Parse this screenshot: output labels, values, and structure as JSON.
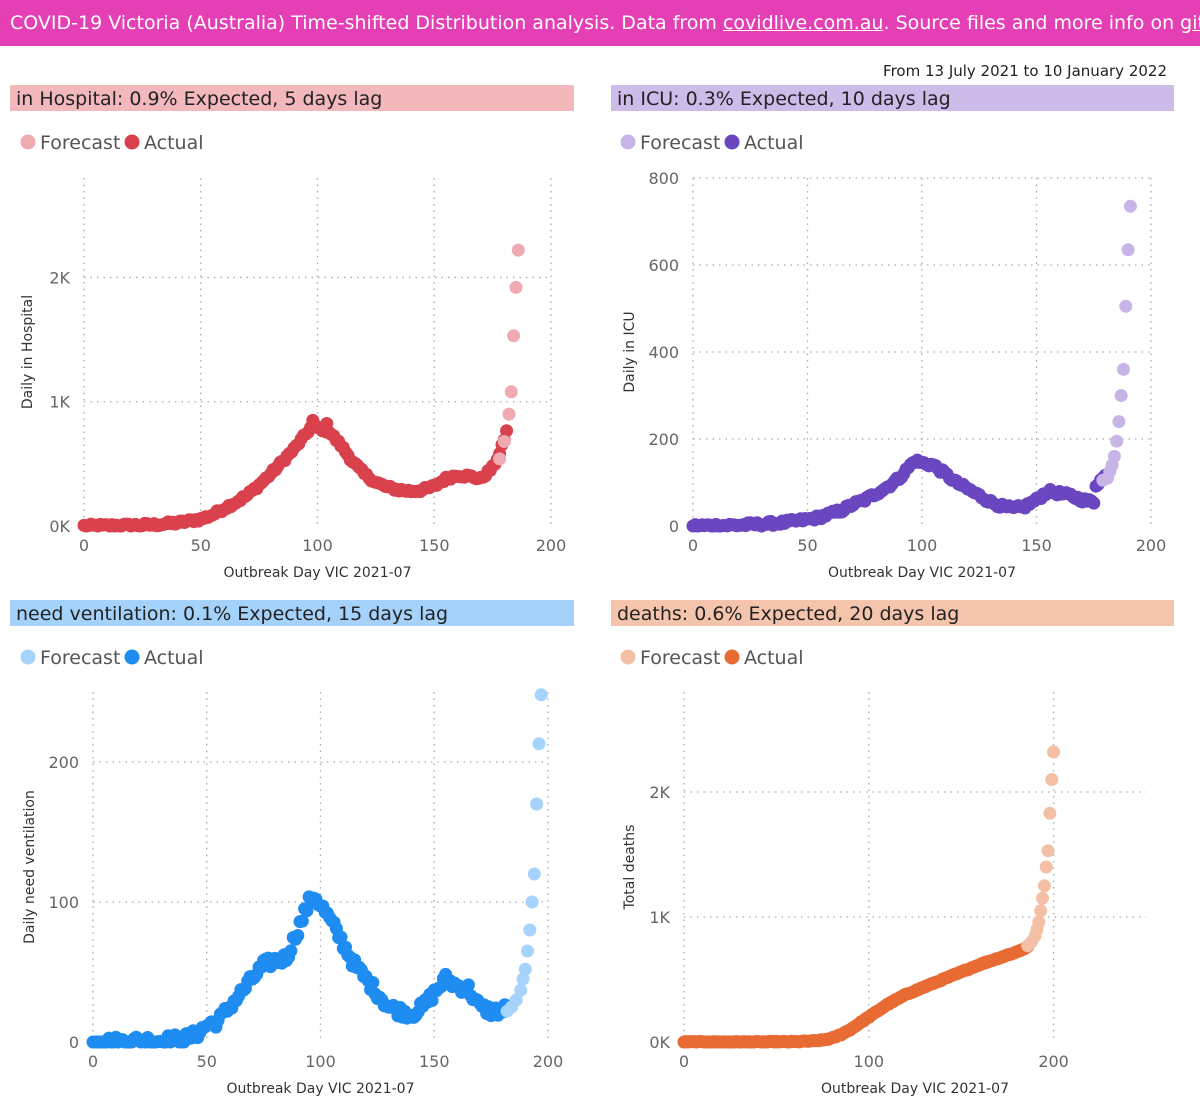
{
  "banner": {
    "prefix": "COVID-19 Victoria (Australia) Time-shifted Distribution analysis. Data from ",
    "link1": "covidlive.com.au",
    "middle": ". Source files and more info on ",
    "link2": "github",
    "suffix": "."
  },
  "date_range": "From 13 July 2021 to 10 January 2022",
  "legend": {
    "forecast": "Forecast",
    "actual": "Actual"
  },
  "colors": {
    "banner": "#e43fb4",
    "hospital_actual": "#d9414d",
    "hospital_forecast": "#f0aab1",
    "hospital_title_bg": "#f2b8bc",
    "icu_actual": "#6b46c1",
    "icu_forecast": "#c8b5e8",
    "icu_title_bg": "#cdbbea",
    "vent_actual": "#1e8cf0",
    "vent_forecast": "#a6d3fb",
    "vent_title_bg": "#a5d2fa",
    "deaths_actual": "#e86b33",
    "deaths_forecast": "#f3c0a6",
    "deaths_title_bg": "#f4c4ad"
  },
  "chart_data": [
    {
      "type": "scatter",
      "title": "in Hospital: 0.9% Expected, 5 days lag",
      "xlabel": "Outbreak Day VIC 2021-07",
      "ylabel": "Daily in Hospital",
      "xlim": [
        0,
        200
      ],
      "ylim": [
        0,
        2800
      ],
      "x_ticks": [
        0,
        50,
        100,
        150,
        200
      ],
      "x_tick_labels": [
        "0",
        "50",
        "100",
        "150",
        "200"
      ],
      "y_ticks": [
        0,
        1000,
        2000
      ],
      "y_tick_labels": [
        "0K",
        "1K",
        "2K"
      ],
      "series": [
        {
          "name": "Actual",
          "role": "actual",
          "knots": [
            [
              0,
              0
            ],
            [
              10,
              2
            ],
            [
              20,
              5
            ],
            [
              30,
              10
            ],
            [
              40,
              25
            ],
            [
              50,
              55
            ],
            [
              55,
              90
            ],
            [
              60,
              140
            ],
            [
              65,
              190
            ],
            [
              70,
              250
            ],
            [
              75,
              330
            ],
            [
              80,
              420
            ],
            [
              85,
              520
            ],
            [
              90,
              620
            ],
            [
              95,
              740
            ],
            [
              97,
              790
            ],
            [
              100,
              790
            ],
            [
              105,
              760
            ],
            [
              110,
              650
            ],
            [
              115,
              520
            ],
            [
              120,
              420
            ],
            [
              125,
              350
            ],
            [
              130,
              310
            ],
            [
              135,
              290
            ],
            [
              140,
              280
            ],
            [
              145,
              290
            ],
            [
              150,
              320
            ],
            [
              155,
              380
            ],
            [
              160,
              410
            ],
            [
              165,
              400
            ],
            [
              170,
              380
            ],
            [
              175,
              470
            ],
            [
              178,
              580
            ],
            [
              180,
              700
            ],
            [
              181,
              760
            ]
          ],
          "jitter": 15,
          "step": 1,
          "extra": [
            [
              98,
              850
            ],
            [
              99,
              810
            ],
            [
              104,
              825
            ]
          ]
        },
        {
          "name": "Forecast",
          "role": "forecast",
          "points": [
            [
              178,
              540
            ],
            [
              180,
              680
            ],
            [
              182,
              900
            ],
            [
              183,
              1080
            ],
            [
              184,
              1530
            ],
            [
              185,
              1920
            ],
            [
              186,
              2220
            ]
          ]
        }
      ]
    },
    {
      "type": "scatter",
      "title": "in ICU: 0.3% Expected, 10 days lag",
      "xlabel": "Outbreak Day VIC 2021-07",
      "ylabel": "Daily in ICU",
      "xlim": [
        0,
        200
      ],
      "ylim": [
        0,
        800
      ],
      "x_ticks": [
        0,
        50,
        100,
        150,
        200
      ],
      "x_tick_labels": [
        "0",
        "50",
        "100",
        "150",
        "200"
      ],
      "y_ticks": [
        0,
        200,
        400,
        600,
        800
      ],
      "y_tick_labels": [
        "0",
        "200",
        "400",
        "600",
        "800"
      ],
      "series": [
        {
          "name": "Actual",
          "role": "actual",
          "knots": [
            [
              0,
              0
            ],
            [
              10,
              1
            ],
            [
              20,
              2
            ],
            [
              30,
              4
            ],
            [
              40,
              8
            ],
            [
              50,
              15
            ],
            [
              55,
              20
            ],
            [
              60,
              28
            ],
            [
              65,
              36
            ],
            [
              70,
              50
            ],
            [
              75,
              60
            ],
            [
              80,
              75
            ],
            [
              85,
              90
            ],
            [
              90,
              110
            ],
            [
              95,
              140
            ],
            [
              97,
              150
            ],
            [
              100,
              145
            ],
            [
              105,
              140
            ],
            [
              110,
              120
            ],
            [
              115,
              100
            ],
            [
              120,
              85
            ],
            [
              125,
              70
            ],
            [
              130,
              55
            ],
            [
              135,
              45
            ],
            [
              140,
              40
            ],
            [
              145,
              45
            ],
            [
              150,
              60
            ],
            [
              155,
              80
            ],
            [
              160,
              75
            ],
            [
              165,
              70
            ],
            [
              170,
              60
            ],
            [
              175,
              55
            ],
            [
              176,
              95
            ],
            [
              178,
              105
            ],
            [
              180,
              115
            ]
          ],
          "jitter": 5,
          "step": 1,
          "extra": []
        },
        {
          "name": "Forecast",
          "role": "forecast",
          "points": [
            [
              179,
              105
            ],
            [
              181,
              110
            ],
            [
              182,
              125
            ],
            [
              183,
              140
            ],
            [
              184,
              160
            ],
            [
              185,
              195
            ],
            [
              186,
              240
            ],
            [
              187,
              300
            ],
            [
              188,
              360
            ],
            [
              189,
              505
            ],
            [
              190,
              635
            ],
            [
              191,
              735
            ]
          ]
        }
      ]
    },
    {
      "type": "scatter",
      "title": "need ventilation: 0.1% Expected, 15 days lag",
      "xlabel": "Outbreak Day VIC 2021-07",
      "ylabel": "Daily need ventilation",
      "xlim": [
        0,
        200
      ],
      "ylim": [
        0,
        250
      ],
      "x_ticks": [
        0,
        50,
        100,
        150,
        200
      ],
      "x_tick_labels": [
        "0",
        "50",
        "100",
        "150",
        "200"
      ],
      "y_ticks": [
        0,
        100,
        200
      ],
      "y_tick_labels": [
        "0",
        "100",
        "200"
      ],
      "series": [
        {
          "name": "Actual",
          "role": "actual",
          "knots": [
            [
              0,
              0
            ],
            [
              10,
              0
            ],
            [
              20,
              1
            ],
            [
              30,
              1
            ],
            [
              40,
              2
            ],
            [
              45,
              5
            ],
            [
              50,
              12
            ],
            [
              55,
              15
            ],
            [
              60,
              25
            ],
            [
              65,
              35
            ],
            [
              70,
              45
            ],
            [
              75,
              55
            ],
            [
              80,
              58
            ],
            [
              85,
              60
            ],
            [
              90,
              80
            ],
            [
              95,
              100
            ],
            [
              97,
              105
            ],
            [
              100,
              98
            ],
            [
              105,
              85
            ],
            [
              110,
              70
            ],
            [
              115,
              55
            ],
            [
              120,
              45
            ],
            [
              125,
              35
            ],
            [
              130,
              25
            ],
            [
              135,
              22
            ],
            [
              140,
              20
            ],
            [
              145,
              25
            ],
            [
              150,
              35
            ],
            [
              155,
              45
            ],
            [
              160,
              40
            ],
            [
              165,
              38
            ],
            [
              170,
              25
            ],
            [
              175,
              22
            ],
            [
              180,
              22
            ],
            [
              182,
              25
            ]
          ],
          "jitter": 4,
          "step": 1,
          "extra": []
        },
        {
          "name": "Forecast",
          "role": "forecast",
          "points": [
            [
              182,
              22
            ],
            [
              184,
              25
            ],
            [
              186,
              30
            ],
            [
              188,
              37
            ],
            [
              189,
              45
            ],
            [
              190,
              52
            ],
            [
              191,
              65
            ],
            [
              192,
              80
            ],
            [
              193,
              100
            ],
            [
              194,
              120
            ],
            [
              195,
              170
            ],
            [
              196,
              213
            ],
            [
              197,
              248
            ]
          ]
        }
      ]
    },
    {
      "type": "scatter",
      "title": "deaths: 0.6% Expected, 20 days lag",
      "xlabel": "Outbreak Day VIC 2021-07",
      "ylabel": "Total deaths",
      "xlim": [
        0,
        250
      ],
      "ylim": [
        0,
        2800
      ],
      "x_ticks": [
        0,
        100,
        200
      ],
      "x_tick_labels": [
        "0",
        "100",
        "200"
      ],
      "y_ticks": [
        0,
        1000,
        2000
      ],
      "y_tick_labels": [
        "0K",
        "1K",
        "2K"
      ],
      "series": [
        {
          "name": "Actual",
          "role": "actual",
          "knots": [
            [
              0,
              0
            ],
            [
              20,
              0
            ],
            [
              40,
              0
            ],
            [
              60,
              2
            ],
            [
              70,
              8
            ],
            [
              75,
              15
            ],
            [
              80,
              30
            ],
            [
              85,
              60
            ],
            [
              90,
              100
            ],
            [
              95,
              150
            ],
            [
              100,
              200
            ],
            [
              110,
              300
            ],
            [
              120,
              380
            ],
            [
              130,
              440
            ],
            [
              140,
              500
            ],
            [
              150,
              560
            ],
            [
              160,
              620
            ],
            [
              170,
              670
            ],
            [
              180,
              720
            ],
            [
              186,
              760
            ]
          ],
          "jitter": 4,
          "step": 1,
          "extra": []
        },
        {
          "name": "Forecast",
          "role": "forecast",
          "points": [
            [
              186,
              770
            ],
            [
              188,
              800
            ],
            [
              190,
              850
            ],
            [
              191,
              900
            ],
            [
              192,
              960
            ],
            [
              193,
              1050
            ],
            [
              194,
              1150
            ],
            [
              195,
              1250
            ],
            [
              196,
              1400
            ],
            [
              197,
              1530
            ],
            [
              198,
              1830
            ],
            [
              199,
              2100
            ],
            [
              200,
              2320
            ]
          ]
        }
      ]
    }
  ]
}
